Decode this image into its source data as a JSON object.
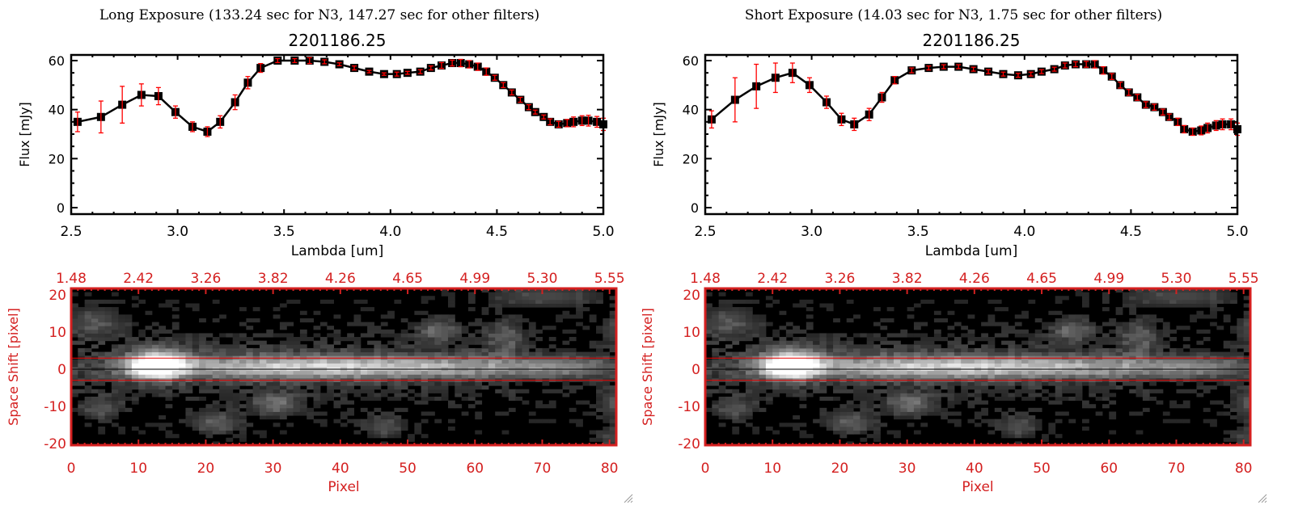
{
  "colors": {
    "axis_red": "#d42020",
    "errorbar": "#ff0000",
    "marker": "#000000",
    "line": "#000000"
  },
  "chart_data": [
    {
      "panel": "long",
      "title": "Long Exposure (133.24 sec for N3, 147.27 sec for other filters)",
      "spectrum": {
        "type": "line",
        "title": "2201186.25",
        "xlabel": "Lambda [um]",
        "ylabel": "Flux [mJy]",
        "xlim": [
          2.5,
          5.0
        ],
        "ylim": [
          -2,
          62
        ],
        "xticks": [
          "2.5",
          "3.0",
          "3.5",
          "4.0",
          "4.5",
          "5.0"
        ],
        "yticks": [
          "0",
          "20",
          "40",
          "60"
        ],
        "x": [
          2.53,
          2.64,
          2.74,
          2.83,
          2.91,
          2.99,
          3.07,
          3.14,
          3.2,
          3.27,
          3.33,
          3.39,
          3.47,
          3.55,
          3.62,
          3.69,
          3.76,
          3.83,
          3.9,
          3.97,
          4.03,
          4.08,
          4.14,
          4.19,
          4.24,
          4.29,
          4.33,
          4.37,
          4.41,
          4.45,
          4.49,
          4.53,
          4.57,
          4.61,
          4.65,
          4.68,
          4.72,
          4.75,
          4.79,
          4.83,
          4.86,
          4.9,
          4.93,
          4.97,
          5.0
        ],
        "y": [
          35,
          37,
          42,
          46,
          45.5,
          39,
          33,
          31,
          35,
          43,
          51,
          57,
          60,
          60,
          60,
          59.5,
          58.5,
          57,
          55.5,
          54.5,
          54.5,
          55,
          55.5,
          57,
          58,
          59,
          59,
          58.5,
          57.5,
          55.5,
          53,
          50,
          47,
          44,
          41,
          39,
          37,
          35,
          34,
          34.5,
          35,
          35.5,
          35.5,
          35,
          34
        ],
        "yerr": [
          4,
          6.5,
          7.5,
          4.5,
          3.5,
          2.5,
          2,
          2,
          2.5,
          3,
          2.5,
          1.8,
          0.8,
          0.8,
          1.2,
          0.8,
          0.6,
          0.8,
          0.5,
          0.5,
          0.8,
          0.6,
          0.8,
          0.8,
          1.2,
          1.2,
          1.5,
          1.5,
          1.5,
          1.5,
          1.0,
          1.0,
          1.0,
          1.0,
          1.0,
          0.8,
          0.8,
          1.2,
          1.2,
          1.5,
          2,
          2,
          2.2,
          2.2,
          2.5
        ]
      },
      "image": {
        "type": "heatmap",
        "xlabel": "Pixel",
        "ylabel": "Space Shift [pixel]",
        "xlim": [
          0,
          81
        ],
        "ylim": [
          -21,
          21
        ],
        "xticks": [
          "0",
          "10",
          "20",
          "30",
          "40",
          "50",
          "60",
          "70",
          "80"
        ],
        "yticks": [
          "20",
          "10",
          "0",
          "-10",
          "-20"
        ],
        "top_ticks": [
          "1.48",
          "2.42",
          "3.26",
          "3.82",
          "4.26",
          "4.65",
          "4.99",
          "5.30",
          "5.55"
        ],
        "aperture": [
          -3,
          3
        ]
      }
    },
    {
      "panel": "short",
      "title": "Short Exposure (14.03 sec for N3, 1.75 sec for other filters)",
      "spectrum": {
        "type": "line",
        "title": "2201186.25",
        "xlabel": "Lambda [um]",
        "ylabel": "Flux [mJy]",
        "xlim": [
          2.5,
          5.0
        ],
        "ylim": [
          -2,
          62
        ],
        "xticks": [
          "2.5",
          "3.0",
          "3.5",
          "4.0",
          "4.5",
          "5.0"
        ],
        "yticks": [
          "0",
          "20",
          "40",
          "60"
        ],
        "x": [
          2.53,
          2.64,
          2.74,
          2.83,
          2.91,
          2.99,
          3.07,
          3.14,
          3.2,
          3.27,
          3.33,
          3.39,
          3.47,
          3.55,
          3.62,
          3.69,
          3.76,
          3.83,
          3.9,
          3.97,
          4.03,
          4.08,
          4.14,
          4.19,
          4.24,
          4.29,
          4.33,
          4.37,
          4.41,
          4.45,
          4.49,
          4.53,
          4.57,
          4.61,
          4.65,
          4.68,
          4.72,
          4.75,
          4.79,
          4.83,
          4.86,
          4.9,
          4.93,
          4.97,
          5.0
        ],
        "y": [
          36,
          44,
          49.5,
          53,
          55,
          50,
          43,
          36,
          34,
          38,
          45,
          52,
          56,
          57,
          57.5,
          57.5,
          56.5,
          55.5,
          54.5,
          54,
          54.5,
          55.5,
          56.5,
          58,
          58.5,
          58.5,
          58.5,
          56,
          53.5,
          50,
          47,
          45,
          42,
          41,
          39,
          37,
          35,
          32,
          31,
          31.5,
          32.5,
          33.5,
          34,
          34,
          32
        ],
        "yerr": [
          3.5,
          9,
          9,
          6,
          4,
          3,
          2.5,
          2.5,
          2.5,
          2.5,
          2,
          1.5,
          1,
          0.8,
          0.8,
          0.8,
          0.8,
          0.8,
          0.8,
          0.8,
          0.8,
          0.8,
          0.8,
          1,
          1,
          1.2,
          1.5,
          1.5,
          1.2,
          1.2,
          1.2,
          1.2,
          1.2,
          1.2,
          1.2,
          1.2,
          1.5,
          1.5,
          1.5,
          1.8,
          2,
          2,
          2.2,
          2.2,
          2.5
        ]
      },
      "image": {
        "type": "heatmap",
        "xlabel": "Pixel",
        "ylabel": "Space Shift [pixel]",
        "xlim": [
          0,
          81
        ],
        "ylim": [
          -21,
          21
        ],
        "xticks": [
          "0",
          "10",
          "20",
          "30",
          "40",
          "50",
          "60",
          "70",
          "80"
        ],
        "yticks": [
          "20",
          "10",
          "0",
          "-10",
          "-20"
        ],
        "top_ticks": [
          "1.48",
          "2.42",
          "3.26",
          "3.82",
          "4.26",
          "4.65",
          "4.99",
          "5.30",
          "5.55"
        ],
        "aperture": [
          -3,
          3
        ]
      }
    }
  ]
}
